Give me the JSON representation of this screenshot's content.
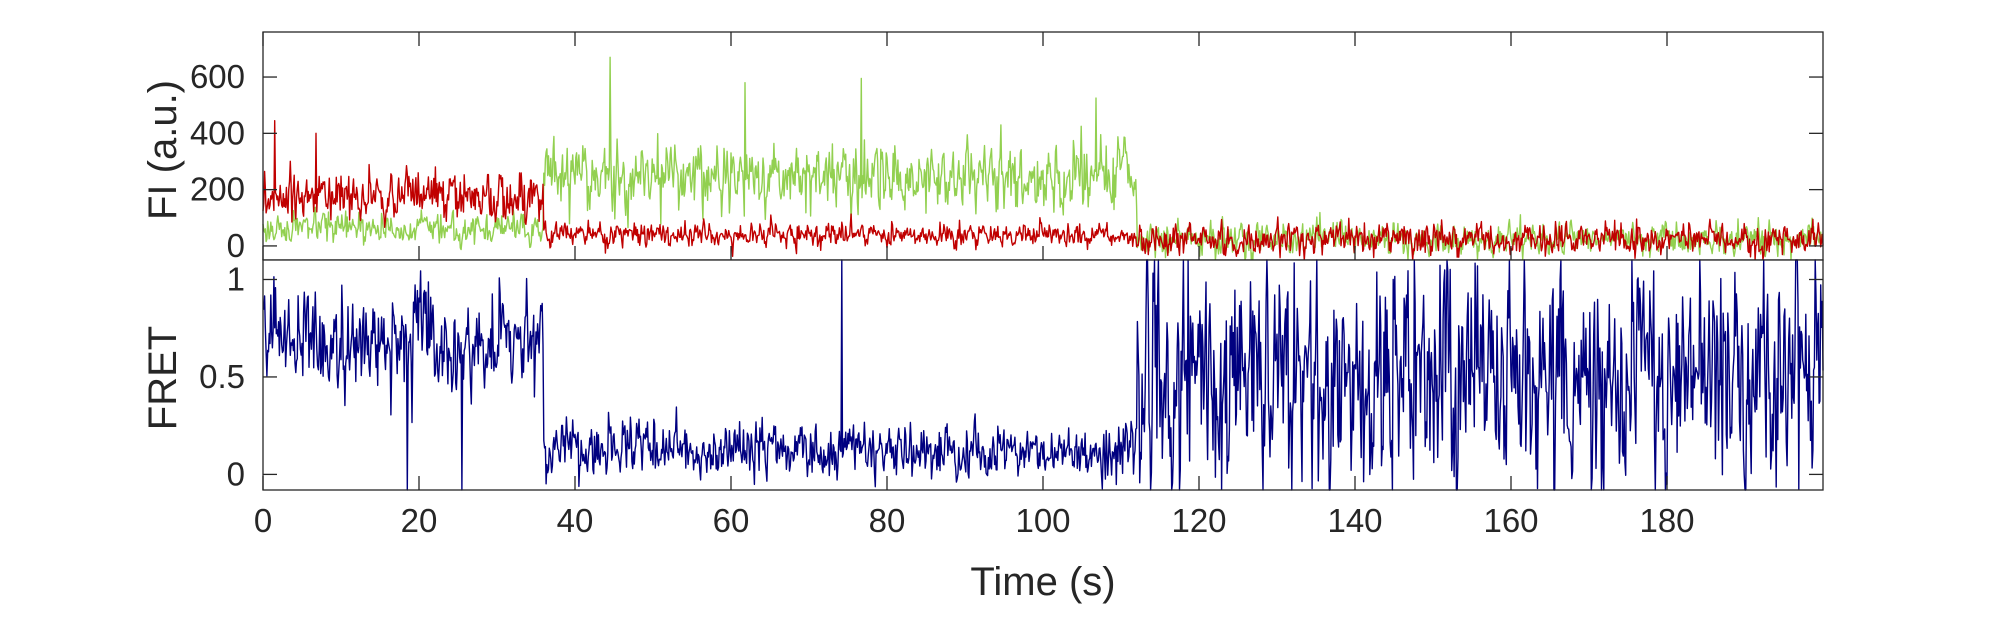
{
  "chart_data": [
    {
      "type": "line",
      "ylabel": "FI (a.u.)",
      "xlim": [
        0,
        200
      ],
      "ylim": [
        -50,
        760
      ],
      "yticks": [
        0,
        200,
        400,
        600
      ],
      "ytick_labels": [
        "0",
        "200",
        "400",
        "600"
      ],
      "colors": {
        "donor": "#92d050",
        "acceptor": "#c00000"
      },
      "series": [
        {
          "key": "donor",
          "color": "#92d050",
          "segments": [
            {
              "start": 0,
              "end": 36,
              "mean": 60,
              "sd": 38
            },
            {
              "start": 36,
              "end": 112,
              "mean": 250,
              "sd": 85
            },
            {
              "start": 112,
              "end": 200,
              "mean": 25,
              "sd": 40
            }
          ],
          "peaks": [
            {
              "x": 44.5,
              "y": 670
            },
            {
              "x": 61.8,
              "y": 580
            },
            {
              "x": 76.7,
              "y": 595
            },
            {
              "x": 106.8,
              "y": 525
            }
          ]
        },
        {
          "key": "acceptor",
          "color": "#c00000",
          "segments": [
            {
              "start": 0,
              "end": 36,
              "mean": 170,
              "sd": 62
            },
            {
              "start": 36,
              "end": 112,
              "mean": 40,
              "sd": 30
            },
            {
              "start": 112,
              "end": 200,
              "mean": 25,
              "sd": 40
            }
          ],
          "peaks": [
            {
              "x": 1.5,
              "y": 445
            },
            {
              "x": 6.8,
              "y": 400
            }
          ]
        }
      ]
    },
    {
      "type": "line",
      "ylabel": "FRET",
      "xlabel": "Time (s)",
      "xlim": [
        0,
        200
      ],
      "ylim": [
        -0.08,
        1.1
      ],
      "xticks": [
        0,
        20,
        40,
        60,
        80,
        100,
        120,
        140,
        160,
        180
      ],
      "xtick_labels": [
        "0",
        "20",
        "40",
        "60",
        "80",
        "100",
        "120",
        "140",
        "160",
        "180"
      ],
      "yticks": [
        0,
        0.5,
        1
      ],
      "ytick_labels": [
        "0",
        "0.5",
        "1"
      ],
      "series": [
        {
          "key": "fret",
          "color": "#000080",
          "segments": [
            {
              "start": 0,
              "end": 36,
              "mean": 0.68,
              "sd": 0.17
            },
            {
              "start": 36,
              "end": 112,
              "mean": 0.13,
              "sd": 0.1
            },
            {
              "start": 112,
              "end": 200,
              "mean": 0.5,
              "sd": 0.42
            }
          ],
          "peaks": [
            {
              "x": 74.2,
              "y": 1.1
            },
            {
              "x": 18.5,
              "y": -0.08
            },
            {
              "x": 25.5,
              "y": -0.08
            }
          ]
        }
      ]
    }
  ]
}
